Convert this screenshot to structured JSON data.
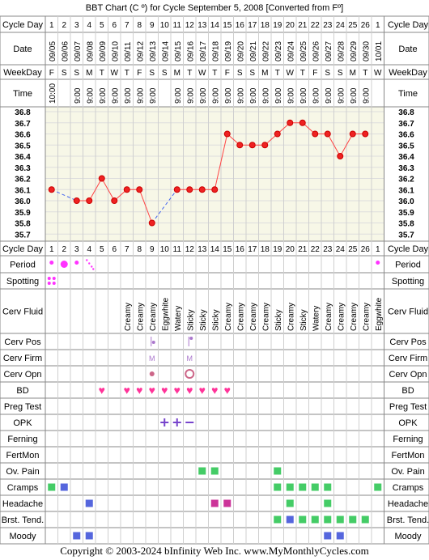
{
  "title": "BBT Chart (C º) for Cycle September 5, 2008  [Converted from Fº]",
  "row_labels": {
    "cycle_day": "Cycle Day",
    "date": "Date",
    "weekday": "WeekDay",
    "time": "Time",
    "period": "Period",
    "spotting": "Spotting",
    "cerv_fluid": "Cerv Fluid",
    "cerv_pos": "Cerv Pos",
    "cerv_firm": "Cerv Firm",
    "cerv_opn": "Cerv Opn",
    "bd": "BD",
    "preg_test": "Preg Test",
    "opk": "OPK",
    "ferning": "Ferning",
    "fertmon": "FertMon",
    "ov_pain": "Ov. Pain",
    "cramps": "Cramps",
    "headache": "Headache",
    "brst_tend": "Brst. Tend.",
    "moody": "Moody"
  },
  "colors": {
    "temp_bg": "#f7f7e7",
    "grid": "#cfcfcf",
    "line": "#ff4444",
    "dot": "#cc0000",
    "gap": "#4466ee",
    "period": "#ff33ff",
    "heart": "#ff3399",
    "green": "#44cc66",
    "blue": "#5566dd",
    "pink": "#cc3399",
    "cervpos": "#aa77cc"
  },
  "footer": "Copyright © 2003-2024 bInfinity Web Inc.    www.MyMonthlyCycles.com",
  "chart_data": {
    "type": "line",
    "cycle_days": [
      1,
      2,
      3,
      4,
      5,
      6,
      7,
      8,
      9,
      10,
      11,
      12,
      13,
      14,
      15,
      16,
      17,
      18,
      19,
      20,
      21,
      22,
      23,
      24,
      25,
      26,
      1
    ],
    "dates": [
      "09/05",
      "09/06",
      "09/07",
      "09/08",
      "09/09",
      "09/10",
      "09/11",
      "09/12",
      "09/13",
      "09/14",
      "09/15",
      "09/16",
      "09/17",
      "09/18",
      "09/19",
      "09/20",
      "09/21",
      "09/22",
      "09/23",
      "09/24",
      "09/25",
      "09/26",
      "09/27",
      "09/28",
      "09/29",
      "09/30",
      "10/01"
    ],
    "weekdays": [
      "F",
      "S",
      "S",
      "M",
      "T",
      "W",
      "T",
      "F",
      "S",
      "S",
      "M",
      "T",
      "W",
      "T",
      "F",
      "S",
      "S",
      "M",
      "T",
      "W",
      "T",
      "F",
      "S",
      "S",
      "M",
      "T",
      "W"
    ],
    "times": [
      "10:00",
      "",
      "9:00",
      "9:00",
      "9:00",
      "9:00",
      "9:00",
      "9:00",
      "9:00",
      "",
      "9:00",
      "9:00",
      "9:00",
      "9:00",
      "9:00",
      "9:00",
      "9:00",
      "9:00",
      "9:00",
      "9:00",
      "9:00",
      "9:00",
      "9:00",
      "9:00",
      "9:00",
      "9:00",
      ""
    ],
    "temps": [
      36.1,
      null,
      36.0,
      36.0,
      36.2,
      36.0,
      36.1,
      36.1,
      35.8,
      null,
      36.1,
      36.1,
      36.1,
      36.1,
      36.6,
      36.5,
      36.5,
      36.5,
      36.6,
      36.7,
      36.7,
      36.6,
      36.6,
      36.4,
      36.6,
      36.6,
      null
    ],
    "y_ticks": [
      36.8,
      36.7,
      36.6,
      36.5,
      36.4,
      36.3,
      36.2,
      36.1,
      36.0,
      35.9,
      35.8,
      35.7
    ],
    "ylim": [
      35.7,
      36.8
    ],
    "period": [
      "small",
      "large",
      "small",
      "dots",
      "",
      "",
      "",
      "",
      "",
      "",
      "",
      "",
      "",
      "",
      "",
      "",
      "",
      "",
      "",
      "",
      "",
      "",
      "",
      "",
      "",
      "",
      "small"
    ],
    "spotting": [
      "dots",
      "",
      "",
      "",
      "",
      "",
      "",
      "",
      "",
      "",
      "",
      "",
      "",
      "",
      "",
      "",
      "",
      "",
      "",
      "",
      "",
      "",
      "",
      "",
      "",
      "",
      ""
    ],
    "cerv_fluid": [
      "",
      "",
      "",
      "",
      "",
      "",
      "Creamy",
      "Creamy",
      "Creamy",
      "Eggwhite",
      "Watery",
      "Sticky",
      "Sticky",
      "Sticky",
      "Creamy",
      "Creamy",
      "Creamy",
      "Creamy",
      "Sticky",
      "Creamy",
      "Sticky",
      "Watery",
      "Creamy",
      "Creamy",
      "Creamy",
      "Creamy",
      "Eggwhite"
    ],
    "cerv_pos": [
      "",
      "",
      "",
      "",
      "",
      "",
      "",
      "",
      "low",
      "",
      "",
      "high",
      "",
      "",
      "",
      "",
      "",
      "",
      "",
      "",
      "",
      "",
      "",
      "",
      "",
      "",
      ""
    ],
    "cerv_firm": [
      "",
      "",
      "",
      "",
      "",
      "",
      "",
      "",
      "M",
      "",
      "",
      "M",
      "",
      "",
      "",
      "",
      "",
      "",
      "",
      "",
      "",
      "",
      "",
      "",
      "",
      "",
      ""
    ],
    "cerv_opn": [
      "",
      "",
      "",
      "",
      "",
      "",
      "",
      "",
      "closed",
      "",
      "",
      "open",
      "",
      "",
      "",
      "",
      "",
      "",
      "",
      "",
      "",
      "",
      "",
      "",
      "",
      "",
      ""
    ],
    "bd": [
      false,
      false,
      false,
      false,
      true,
      false,
      true,
      true,
      true,
      true,
      true,
      true,
      true,
      true,
      true,
      false,
      false,
      false,
      false,
      false,
      false,
      false,
      false,
      false,
      false,
      false,
      false
    ],
    "preg_test": [
      "",
      "",
      "",
      "",
      "",
      "",
      "",
      "",
      "",
      "",
      "",
      "",
      "",
      "",
      "",
      "",
      "",
      "",
      "",
      "",
      "",
      "",
      "",
      "",
      "",
      "",
      ""
    ],
    "opk": [
      "",
      "",
      "",
      "",
      "",
      "",
      "",
      "",
      "",
      "+",
      "+",
      "-",
      "",
      "",
      "",
      "",
      "",
      "",
      "",
      "",
      "",
      "",
      "",
      "",
      "",
      "",
      ""
    ],
    "ov_pain": [
      false,
      false,
      false,
      false,
      false,
      false,
      false,
      false,
      false,
      false,
      false,
      false,
      true,
      true,
      false,
      false,
      false,
      false,
      true,
      false,
      false,
      false,
      false,
      false,
      false,
      false,
      false
    ],
    "cramps": [
      "green",
      "blue",
      "",
      "",
      "",
      "",
      "",
      "",
      "",
      "",
      "",
      "",
      "",
      "",
      "",
      "",
      "",
      "",
      "green",
      "green",
      "green",
      "green",
      "green",
      "",
      "",
      "",
      "green"
    ],
    "headache": [
      "",
      "",
      "",
      "blue",
      "",
      "",
      "",
      "",
      "",
      "",
      "",
      "",
      "",
      "pink",
      "pink",
      "",
      "",
      "",
      "",
      "green",
      "",
      "",
      "green",
      "",
      "",
      "",
      ""
    ],
    "brst_tend": [
      "",
      "",
      "",
      "",
      "",
      "",
      "",
      "",
      "",
      "",
      "",
      "",
      "",
      "",
      "",
      "",
      "",
      "",
      "green",
      "blue",
      "green",
      "green",
      "green",
      "green",
      "green",
      "green",
      ""
    ],
    "moody": [
      "",
      "",
      "blue",
      "blue",
      "",
      "",
      "",
      "",
      "",
      "",
      "",
      "",
      "",
      "",
      "",
      "",
      "",
      "",
      "",
      "",
      "",
      "",
      "blue",
      "blue",
      "",
      "",
      ""
    ]
  }
}
